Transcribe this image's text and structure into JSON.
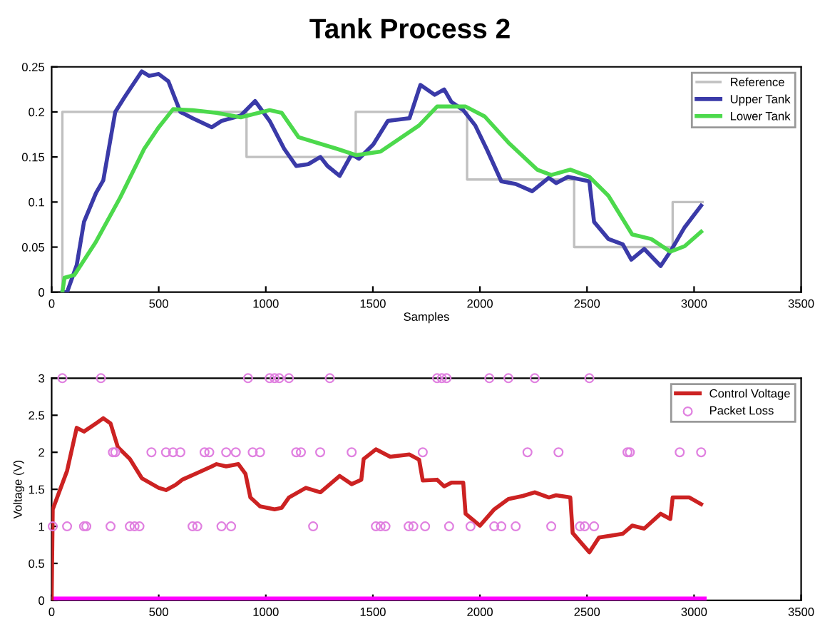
{
  "chart_data": [
    {
      "type": "line",
      "title": "Tank Process 2",
      "xlabel": "Samples",
      "xlim": [
        0,
        3500
      ],
      "xticks": [
        0,
        500,
        1000,
        1500,
        2000,
        2500,
        3000,
        3500
      ],
      "ylim": [
        0,
        0.25
      ],
      "yticks": [
        0,
        0.05,
        0.1,
        0.15,
        0.2,
        0.25
      ],
      "grid": false,
      "legend": "top right",
      "series": [
        {
          "name": "Reference",
          "type": "step",
          "color": "#c0c0c0",
          "x": [
            0,
            50,
            910,
            1420,
            1940,
            2440,
            2900,
            3040
          ],
          "values": [
            0,
            0.2,
            0.15,
            0.2,
            0.125,
            0.05,
            0.1,
            0.1
          ]
        },
        {
          "name": "Upper Tank",
          "type": "line",
          "color": "#3a3aa8",
          "x": [
            50,
            72,
            117,
            151,
            207,
            241,
            297,
            342,
            387,
            421,
            455,
            500,
            545,
            601,
            658,
            748,
            793,
            883,
            950,
            1018,
            1086,
            1142,
            1198,
            1255,
            1288,
            1345,
            1401,
            1435,
            1502,
            1570,
            1671,
            1722,
            1789,
            1833,
            1867,
            1922,
            1978,
            2033,
            2100,
            2167,
            2244,
            2322,
            2356,
            2411,
            2511,
            2533,
            2600,
            2667,
            2707,
            2767,
            2844,
            2889,
            2956,
            3033
          ],
          "values": [
            0,
            0,
            0.03,
            0.078,
            0.11,
            0.124,
            0.2,
            0.217,
            0.233,
            0.245,
            0.24,
            0.242,
            0.234,
            0.2,
            0.193,
            0.183,
            0.19,
            0.196,
            0.212,
            0.19,
            0.159,
            0.14,
            0.142,
            0.15,
            0.14,
            0.129,
            0.153,
            0.148,
            0.164,
            0.19,
            0.193,
            0.23,
            0.219,
            0.225,
            0.211,
            0.202,
            0.185,
            0.158,
            0.123,
            0.12,
            0.112,
            0.127,
            0.121,
            0.128,
            0.123,
            0.078,
            0.059,
            0.053,
            0.036,
            0.048,
            0.029,
            0.045,
            0.072,
            0.096
          ]
        },
        {
          "name": "Lower Tank",
          "type": "line",
          "color": "#4cd94c",
          "x": [
            50,
            60,
            106,
            207,
            320,
            432,
            500,
            567,
            658,
            770,
            883,
            1018,
            1074,
            1153,
            1333,
            1423,
            1536,
            1716,
            1800,
            1933,
            2022,
            2133,
            2267,
            2333,
            2422,
            2511,
            2600,
            2711,
            2800,
            2889,
            2956,
            3033
          ],
          "values": [
            0,
            0.016,
            0.019,
            0.056,
            0.105,
            0.159,
            0.183,
            0.203,
            0.202,
            0.199,
            0.194,
            0.202,
            0.199,
            0.172,
            0.159,
            0.152,
            0.156,
            0.185,
            0.206,
            0.206,
            0.195,
            0.166,
            0.136,
            0.13,
            0.136,
            0.128,
            0.107,
            0.064,
            0.059,
            0.045,
            0.051,
            0.067
          ]
        }
      ]
    },
    {
      "type": "line",
      "ylabel": "Voltage (V)",
      "xlim": [
        0,
        3500
      ],
      "xticks": [
        0,
        500,
        1000,
        1500,
        2000,
        2500,
        3000,
        3500
      ],
      "ylim": [
        0,
        3
      ],
      "yticks": [
        0,
        0.5,
        1,
        1.5,
        2,
        2.5,
        3
      ],
      "grid": false,
      "legend": "top right",
      "series": [
        {
          "type": "line",
          "color": "#ff00ff",
          "x": [
            0,
            3040
          ],
          "values": [
            0,
            0
          ]
        },
        {
          "name": "Control Voltage",
          "type": "line",
          "color": "#cc2222",
          "x": [
            0,
            5,
            72,
            117,
            151,
            207,
            241,
            275,
            309,
            365,
            421,
            500,
            534,
            579,
            610,
            680,
            748,
            770,
            815,
            872,
            905,
            928,
            973,
            1041,
            1074,
            1108,
            1187,
            1255,
            1345,
            1401,
            1446,
            1457,
            1514,
            1581,
            1671,
            1716,
            1733,
            1800,
            1833,
            1867,
            1922,
            1933,
            2000,
            2067,
            2133,
            2200,
            2256,
            2322,
            2356,
            2422,
            2433,
            2511,
            2556,
            2667,
            2711,
            2767,
            2844,
            2889,
            2900,
            2978,
            3033
          ],
          "values": [
            0,
            1.23,
            1.75,
            2.33,
            2.28,
            2.39,
            2.46,
            2.39,
            2.07,
            1.91,
            1.65,
            1.52,
            1.49,
            1.56,
            1.63,
            1.72,
            1.81,
            1.84,
            1.81,
            1.84,
            1.71,
            1.39,
            1.27,
            1.23,
            1.25,
            1.39,
            1.52,
            1.46,
            1.68,
            1.57,
            1.63,
            1.91,
            2.04,
            1.94,
            1.97,
            1.9,
            1.62,
            1.63,
            1.54,
            1.59,
            1.59,
            1.17,
            1.01,
            1.23,
            1.37,
            1.41,
            1.46,
            1.39,
            1.42,
            1.39,
            0.91,
            0.65,
            0.85,
            0.9,
            1.01,
            0.97,
            1.17,
            1.1,
            1.39,
            1.39,
            1.3
          ]
        },
        {
          "name": "Packet Loss",
          "type": "scatter",
          "marker": "circle",
          "color": "#e080e0",
          "x": [
            5,
            72,
            151,
            162,
            275,
            365,
            387,
            410,
            658,
            680,
            793,
            838,
            1221,
            1514,
            1536,
            1559,
            1667,
            1689,
            1744,
            1856,
            1956,
            2067,
            2100,
            2167,
            2333,
            2467,
            2489,
            2533,
            286,
            297,
            466,
            534,
            567,
            601,
            714,
            736,
            815,
            860,
            939,
            973,
            1142,
            1164,
            1254,
            1401,
            1733,
            2222,
            2367,
            2689,
            2700,
            2933,
            3033,
            50,
            230,
            917,
            1018,
            1041,
            1063,
            1108,
            1299,
            1800,
            1822,
            1844,
            2044,
            2133,
            2256,
            2511
          ],
          "values": [
            1,
            1,
            1,
            1,
            1,
            1,
            1,
            1,
            1,
            1,
            1,
            1,
            1,
            1,
            1,
            1,
            1,
            1,
            1,
            1,
            1,
            1,
            1,
            1,
            1,
            1,
            1,
            1,
            2,
            2,
            2,
            2,
            2,
            2,
            2,
            2,
            2,
            2,
            2,
            2,
            2,
            2,
            2,
            2,
            2,
            2,
            2,
            2,
            2,
            2,
            2,
            3,
            3,
            3,
            3,
            3,
            3,
            3,
            3,
            3,
            3,
            3,
            3,
            3,
            3,
            3
          ]
        }
      ]
    }
  ]
}
